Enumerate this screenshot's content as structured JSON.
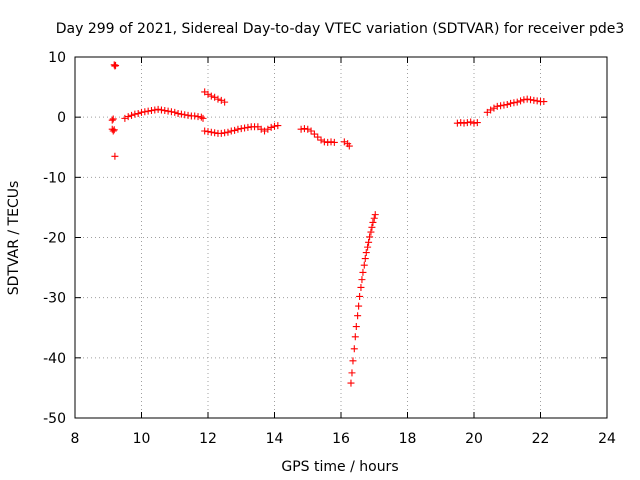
{
  "chart_data": {
    "type": "scatter",
    "title": "Day 299 of 2021, Sidereal Day-to-day VTEC variation (SDTVAR) for receiver pde3",
    "xlabel": "GPS time / hours",
    "ylabel": "SDTVAR / TECUs",
    "xlim": [
      8,
      24
    ],
    "ylim": [
      -50,
      10
    ],
    "xticks": [
      8,
      10,
      12,
      14,
      16,
      18,
      20,
      22,
      24
    ],
    "yticks": [
      -50,
      -40,
      -30,
      -20,
      -10,
      0,
      10
    ],
    "grid": true,
    "marker": "plus",
    "color": "#ff0000",
    "series": [
      {
        "name": "SDTVAR",
        "points": [
          [
            9.18,
            8.7
          ],
          [
            9.2,
            8.5
          ],
          [
            9.22,
            8.6
          ],
          [
            9.12,
            -0.5
          ],
          [
            9.15,
            -0.3
          ],
          [
            9.12,
            -2.0
          ],
          [
            9.15,
            -2.3
          ],
          [
            9.18,
            -2.1
          ],
          [
            9.2,
            -6.5
          ],
          [
            9.5,
            -0.2
          ],
          [
            9.6,
            0.1
          ],
          [
            9.7,
            0.3
          ],
          [
            9.8,
            0.5
          ],
          [
            9.9,
            0.6
          ],
          [
            10.0,
            0.8
          ],
          [
            10.1,
            0.9
          ],
          [
            10.2,
            1.0
          ],
          [
            10.3,
            1.1
          ],
          [
            10.4,
            1.2
          ],
          [
            10.5,
            1.3
          ],
          [
            10.6,
            1.2
          ],
          [
            10.7,
            1.1
          ],
          [
            10.8,
            1.0
          ],
          [
            10.9,
            0.9
          ],
          [
            11.0,
            0.8
          ],
          [
            11.1,
            0.6
          ],
          [
            11.2,
            0.5
          ],
          [
            11.3,
            0.4
          ],
          [
            11.4,
            0.3
          ],
          [
            11.5,
            0.2
          ],
          [
            11.6,
            0.2
          ],
          [
            11.7,
            0.1
          ],
          [
            11.8,
            0.0
          ],
          [
            11.85,
            -0.2
          ],
          [
            11.9,
            4.2
          ],
          [
            12.0,
            3.8
          ],
          [
            12.1,
            3.5
          ],
          [
            12.2,
            3.3
          ],
          [
            12.3,
            3.0
          ],
          [
            12.4,
            2.8
          ],
          [
            12.5,
            2.5
          ],
          [
            11.9,
            -2.3
          ],
          [
            12.0,
            -2.4
          ],
          [
            12.1,
            -2.5
          ],
          [
            12.2,
            -2.6
          ],
          [
            12.3,
            -2.7
          ],
          [
            12.4,
            -2.7
          ],
          [
            12.5,
            -2.6
          ],
          [
            12.6,
            -2.5
          ],
          [
            12.7,
            -2.3
          ],
          [
            12.8,
            -2.2
          ],
          [
            12.9,
            -2.0
          ],
          [
            13.0,
            -1.9
          ],
          [
            13.1,
            -1.8
          ],
          [
            13.2,
            -1.7
          ],
          [
            13.3,
            -1.6
          ],
          [
            13.4,
            -1.6
          ],
          [
            13.5,
            -1.6
          ],
          [
            13.6,
            -2.0
          ],
          [
            13.7,
            -2.3
          ],
          [
            13.8,
            -2.0
          ],
          [
            13.9,
            -1.7
          ],
          [
            14.0,
            -1.5
          ],
          [
            14.1,
            -1.4
          ],
          [
            14.8,
            -2.0
          ],
          [
            14.9,
            -1.9
          ],
          [
            15.0,
            -2.0
          ],
          [
            15.1,
            -2.3
          ],
          [
            15.2,
            -2.8
          ],
          [
            15.3,
            -3.3
          ],
          [
            15.4,
            -3.8
          ],
          [
            15.5,
            -4.1
          ],
          [
            15.6,
            -4.2
          ],
          [
            15.7,
            -4.1
          ],
          [
            15.8,
            -4.2
          ],
          [
            16.1,
            -4.1
          ],
          [
            16.2,
            -4.4
          ],
          [
            16.25,
            -4.8
          ],
          [
            16.3,
            -44.2
          ],
          [
            16.33,
            -42.5
          ],
          [
            16.36,
            -40.5
          ],
          [
            16.4,
            -38.5
          ],
          [
            16.43,
            -36.5
          ],
          [
            16.46,
            -34.8
          ],
          [
            16.5,
            -33.0
          ],
          [
            16.53,
            -31.4
          ],
          [
            16.56,
            -29.8
          ],
          [
            16.6,
            -28.3
          ],
          [
            16.63,
            -27.0
          ],
          [
            16.66,
            -25.8
          ],
          [
            16.7,
            -24.6
          ],
          [
            16.73,
            -23.5
          ],
          [
            16.76,
            -22.5
          ],
          [
            16.8,
            -21.6
          ],
          [
            16.83,
            -20.8
          ],
          [
            16.86,
            -19.9
          ],
          [
            16.9,
            -19.1
          ],
          [
            16.93,
            -18.3
          ],
          [
            16.96,
            -17.5
          ],
          [
            17.0,
            -16.8
          ],
          [
            17.03,
            -16.2
          ],
          [
            19.5,
            -1.0
          ],
          [
            19.6,
            -0.9
          ],
          [
            19.7,
            -1.0
          ],
          [
            19.8,
            -0.9
          ],
          [
            19.9,
            -0.8
          ],
          [
            20.0,
            -1.0
          ],
          [
            20.1,
            -0.9
          ],
          [
            20.4,
            0.8
          ],
          [
            20.5,
            1.2
          ],
          [
            20.6,
            1.5
          ],
          [
            20.7,
            1.8
          ],
          [
            20.8,
            1.9
          ],
          [
            20.9,
            2.0
          ],
          [
            21.0,
            2.1
          ],
          [
            21.1,
            2.3
          ],
          [
            21.2,
            2.4
          ],
          [
            21.3,
            2.5
          ],
          [
            21.4,
            2.7
          ],
          [
            21.5,
            2.9
          ],
          [
            21.6,
            3.0
          ],
          [
            21.7,
            2.9
          ],
          [
            21.8,
            2.8
          ],
          [
            21.9,
            2.7
          ],
          [
            22.0,
            2.6
          ],
          [
            22.1,
            2.6
          ]
        ]
      }
    ]
  }
}
